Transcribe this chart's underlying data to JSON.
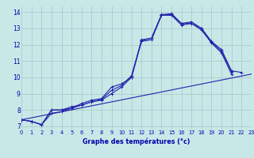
{
  "title": "Graphe des températures (°c)",
  "bg_color": "#c8e8e8",
  "grid_color": "#a8cccc",
  "line_color": "#2222aa",
  "xlim": [
    0,
    23
  ],
  "ylim": [
    6.8,
    14.35
  ],
  "xticks": [
    0,
    1,
    2,
    3,
    4,
    5,
    6,
    7,
    8,
    9,
    10,
    11,
    12,
    13,
    14,
    15,
    16,
    17,
    18,
    19,
    20,
    21,
    22,
    23
  ],
  "yticks": [
    7,
    8,
    9,
    10,
    11,
    12,
    13,
    14
  ],
  "curve1_x": [
    0,
    1,
    2,
    3,
    4,
    5,
    6,
    7,
    8,
    9,
    10,
    11,
    12,
    13,
    14,
    15,
    16,
    17,
    18,
    19,
    20,
    21,
    22
  ],
  "curve1_y": [
    7.4,
    7.3,
    7.1,
    8.0,
    8.0,
    8.1,
    8.4,
    8.6,
    8.7,
    9.4,
    9.6,
    10.0,
    12.3,
    12.4,
    13.8,
    13.85,
    13.3,
    13.3,
    13.0,
    12.2,
    11.7,
    10.4,
    10.3
  ],
  "curve2_x": [
    0,
    1,
    2,
    3,
    4,
    5,
    6,
    7,
    8,
    9,
    10,
    11,
    12,
    13,
    14,
    15,
    16,
    17,
    18,
    19,
    20,
    21,
    22,
    23
  ],
  "curve2_y": [
    7.4,
    7.3,
    7.1,
    7.8,
    7.9,
    8.1,
    8.3,
    8.5,
    8.6,
    9.0,
    9.4,
    10.0,
    12.2,
    12.3,
    13.8,
    13.8,
    13.2,
    13.3,
    12.9,
    12.1,
    11.5,
    10.2,
    null,
    null
  ],
  "curve3_x": [
    0,
    1,
    2,
    3,
    4,
    5,
    6,
    7,
    8,
    9,
    10,
    11,
    12,
    13,
    14,
    15,
    16,
    17,
    18,
    19,
    20,
    21,
    22,
    23
  ],
  "curve3_y": [
    7.4,
    7.3,
    7.1,
    8.0,
    8.0,
    8.2,
    8.3,
    8.5,
    8.65,
    9.2,
    9.5,
    10.1,
    12.25,
    12.4,
    13.85,
    13.9,
    13.3,
    13.4,
    13.0,
    12.15,
    11.6,
    10.35,
    null,
    null
  ],
  "line_trend_x": [
    0,
    23
  ],
  "line_trend_y": [
    7.4,
    10.2
  ]
}
